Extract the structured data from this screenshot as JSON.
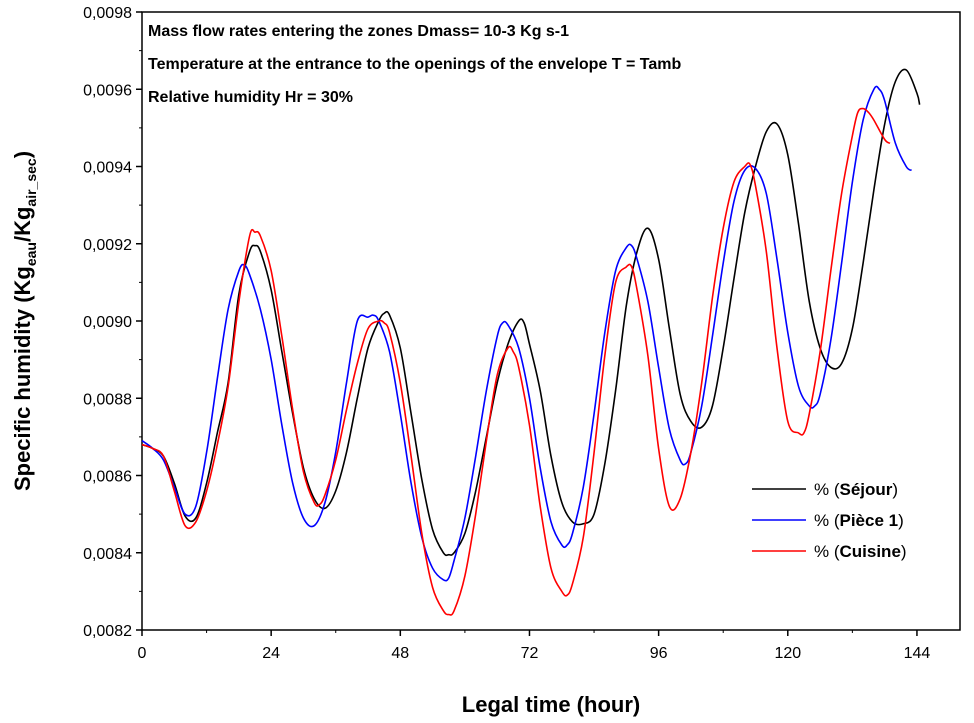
{
  "chart_data": {
    "type": "line",
    "xlabel": "Legal time (hour)",
    "ylabel_parts": [
      "Specific humidity (Kg",
      "eau",
      "/Kg",
      "air_sec",
      ")"
    ],
    "xlim": [
      0,
      152
    ],
    "ylim": [
      0.0082,
      0.0098
    ],
    "xticks": [
      0,
      24,
      48,
      72,
      96,
      120,
      144
    ],
    "xtick_labels": [
      "0",
      "24",
      "48",
      "72",
      "96",
      "120",
      "144"
    ],
    "yticks": [
      0.0082,
      0.0084,
      0.0086,
      0.0088,
      0.009,
      0.0092,
      0.0094,
      0.0096,
      0.0098
    ],
    "ytick_labels": [
      "0,0082",
      "0,0084",
      "0,0086",
      "0,0088",
      "0,0090",
      "0,0092",
      "0,0094",
      "0,0096",
      "0,0098"
    ],
    "annotations": [
      "Mass flow rates entering the zones Dmass= 10-3 Kg s-1",
      "Temperature at the entrance to the openings of the envelope T = Tamb",
      "Relative humidity Hr = 30%"
    ],
    "legend_position": "bottom-right",
    "series": [
      {
        "name": "Séjour",
        "legend_prefix": "% (",
        "legend_name": "Séjour",
        "legend_suffix": ")",
        "color": "#000000",
        "points": [
          [
            0,
            0.00868
          ],
          [
            2,
            0.00867
          ],
          [
            4,
            0.00865
          ],
          [
            6,
            0.00858
          ],
          [
            8,
            0.008495
          ],
          [
            10,
            0.00849
          ],
          [
            12,
            0.00858
          ],
          [
            14,
            0.00871
          ],
          [
            16,
            0.00884
          ],
          [
            18,
            0.00907
          ],
          [
            20,
            0.00918
          ],
          [
            21,
            0.009195
          ],
          [
            22,
            0.00918
          ],
          [
            24,
            0.00908
          ],
          [
            26,
            0.00892
          ],
          [
            28,
            0.00876
          ],
          [
            30,
            0.00862
          ],
          [
            32,
            0.00854
          ],
          [
            34,
            0.008515
          ],
          [
            36,
            0.00856
          ],
          [
            38,
            0.00866
          ],
          [
            40,
            0.0088
          ],
          [
            42,
            0.00893
          ],
          [
            44,
            0.009
          ],
          [
            45,
            0.00902
          ],
          [
            46,
            0.009015
          ],
          [
            48,
            0.00893
          ],
          [
            50,
            0.00876
          ],
          [
            52,
            0.00859
          ],
          [
            54,
            0.00846
          ],
          [
            56,
            0.0084
          ],
          [
            57,
            0.008395
          ],
          [
            58,
            0.0084
          ],
          [
            60,
            0.00845
          ],
          [
            62,
            0.00856
          ],
          [
            64,
            0.0087
          ],
          [
            66,
            0.00884
          ],
          [
            68,
            0.00894
          ],
          [
            70,
            0.009
          ],
          [
            71,
            0.008995
          ],
          [
            72,
            0.00894
          ],
          [
            74,
            0.00882
          ],
          [
            76,
            0.00865
          ],
          [
            78,
            0.00853
          ],
          [
            80,
            0.00848
          ],
          [
            82,
            0.008475
          ],
          [
            84,
            0.0085
          ],
          [
            86,
            0.00863
          ],
          [
            88,
            0.00882
          ],
          [
            90,
            0.00904
          ],
          [
            92,
            0.00918
          ],
          [
            94,
            0.00924
          ],
          [
            96,
            0.00916
          ],
          [
            98,
            0.00898
          ],
          [
            100,
            0.00881
          ],
          [
            102,
            0.00874
          ],
          [
            104,
            0.008725
          ],
          [
            106,
            0.00878
          ],
          [
            108,
            0.00893
          ],
          [
            110,
            0.00911
          ],
          [
            112,
            0.00928
          ],
          [
            114,
            0.0094
          ],
          [
            116,
            0.00949
          ],
          [
            118,
            0.00951
          ],
          [
            120,
            0.00943
          ],
          [
            122,
            0.00925
          ],
          [
            124,
            0.00905
          ],
          [
            126,
            0.00893
          ],
          [
            128,
            0.00888
          ],
          [
            130,
            0.00889
          ],
          [
            132,
            0.00898
          ],
          [
            134,
            0.00915
          ],
          [
            136,
            0.00934
          ],
          [
            138,
            0.00951
          ],
          [
            140,
            0.00962
          ],
          [
            142,
            0.00965
          ],
          [
            144,
            0.00959
          ],
          [
            144.5,
            0.00956
          ]
        ]
      },
      {
        "name": "Pièce 1",
        "legend_prefix": "% (",
        "legend_name": "Pièce 1",
        "legend_suffix": ")",
        "color": "#0000ff",
        "points": [
          [
            0,
            0.00869
          ],
          [
            2,
            0.00867
          ],
          [
            4,
            0.00864
          ],
          [
            6,
            0.00857
          ],
          [
            8,
            0.0085
          ],
          [
            10,
            0.00852
          ],
          [
            12,
            0.00866
          ],
          [
            14,
            0.00885
          ],
          [
            16,
            0.00903
          ],
          [
            18,
            0.00913
          ],
          [
            19,
            0.009145
          ],
          [
            20,
            0.00912
          ],
          [
            22,
            0.00903
          ],
          [
            24,
            0.0089
          ],
          [
            26,
            0.00873
          ],
          [
            28,
            0.00858
          ],
          [
            30,
            0.00849
          ],
          [
            32,
            0.00847
          ],
          [
            34,
            0.00853
          ],
          [
            36,
            0.00866
          ],
          [
            38,
            0.00884
          ],
          [
            40,
            0.009
          ],
          [
            42,
            0.00901
          ],
          [
            43,
            0.009015
          ],
          [
            44,
            0.009
          ],
          [
            46,
            0.00892
          ],
          [
            48,
            0.00876
          ],
          [
            50,
            0.00858
          ],
          [
            52,
            0.00844
          ],
          [
            54,
            0.00836
          ],
          [
            56,
            0.00833
          ],
          [
            57,
            0.008335
          ],
          [
            58,
            0.00838
          ],
          [
            60,
            0.00849
          ],
          [
            62,
            0.00865
          ],
          [
            64,
            0.00882
          ],
          [
            66,
            0.00896
          ],
          [
            67,
            0.008995
          ],
          [
            68,
            0.00899
          ],
          [
            70,
            0.00893
          ],
          [
            72,
            0.0088
          ],
          [
            74,
            0.00862
          ],
          [
            76,
            0.00848
          ],
          [
            78,
            0.00842
          ],
          [
            79,
            0.00842
          ],
          [
            80,
            0.00845
          ],
          [
            82,
            0.00857
          ],
          [
            84,
            0.00876
          ],
          [
            86,
            0.00897
          ],
          [
            88,
            0.00913
          ],
          [
            90,
            0.00919
          ],
          [
            91,
            0.009195
          ],
          [
            92,
            0.00916
          ],
          [
            94,
            0.00905
          ],
          [
            96,
            0.00888
          ],
          [
            98,
            0.00872
          ],
          [
            100,
            0.00864
          ],
          [
            101,
            0.00863
          ],
          [
            102,
            0.00866
          ],
          [
            104,
            0.00878
          ],
          [
            106,
            0.00896
          ],
          [
            108,
            0.00915
          ],
          [
            110,
            0.00931
          ],
          [
            112,
            0.00939
          ],
          [
            114,
            0.009395
          ],
          [
            116,
            0.00933
          ],
          [
            118,
            0.00916
          ],
          [
            120,
            0.00897
          ],
          [
            122,
            0.00883
          ],
          [
            124,
            0.00878
          ],
          [
            125,
            0.00878
          ],
          [
            126,
            0.00881
          ],
          [
            128,
            0.00895
          ],
          [
            130,
            0.00915
          ],
          [
            132,
            0.00936
          ],
          [
            134,
            0.00952
          ],
          [
            136,
            0.0096
          ],
          [
            137,
            0.0096
          ],
          [
            138,
            0.00957
          ],
          [
            140,
            0.00946
          ],
          [
            142,
            0.0094
          ],
          [
            143,
            0.00939
          ]
        ]
      },
      {
        "name": "Cuisine",
        "legend_prefix": "% (",
        "legend_name": "Cuisine",
        "legend_suffix": ")",
        "color": "#ff0000",
        "points": [
          [
            0,
            0.00868
          ],
          [
            2,
            0.00867
          ],
          [
            4,
            0.00865
          ],
          [
            6,
            0.00856
          ],
          [
            8,
            0.00847
          ],
          [
            10,
            0.00848
          ],
          [
            12,
            0.00856
          ],
          [
            14,
            0.00868
          ],
          [
            16,
            0.00883
          ],
          [
            18,
            0.00905
          ],
          [
            20,
            0.00922
          ],
          [
            21,
            0.00923
          ],
          [
            22,
            0.00922
          ],
          [
            24,
            0.00913
          ],
          [
            26,
            0.00896
          ],
          [
            28,
            0.00877
          ],
          [
            30,
            0.00861
          ],
          [
            32,
            0.00853
          ],
          [
            33,
            0.008525
          ],
          [
            34,
            0.00855
          ],
          [
            36,
            0.00864
          ],
          [
            38,
            0.00877
          ],
          [
            40,
            0.00889
          ],
          [
            42,
            0.00898
          ],
          [
            44,
            0.009
          ],
          [
            45,
            0.008995
          ],
          [
            46,
            0.00897
          ],
          [
            48,
            0.00884
          ],
          [
            50,
            0.00865
          ],
          [
            52,
            0.00845
          ],
          [
            54,
            0.00831
          ],
          [
            56,
            0.00825
          ],
          [
            57,
            0.00824
          ],
          [
            58,
            0.00825
          ],
          [
            60,
            0.00834
          ],
          [
            62,
            0.0085
          ],
          [
            64,
            0.00869
          ],
          [
            66,
            0.00886
          ],
          [
            68,
            0.00893
          ],
          [
            69,
            0.00892
          ],
          [
            70,
            0.00888
          ],
          [
            72,
            0.00873
          ],
          [
            74,
            0.00852
          ],
          [
            76,
            0.00836
          ],
          [
            78,
            0.0083
          ],
          [
            79,
            0.00829
          ],
          [
            80,
            0.00832
          ],
          [
            82,
            0.00844
          ],
          [
            84,
            0.00866
          ],
          [
            86,
            0.00891
          ],
          [
            88,
            0.0091
          ],
          [
            90,
            0.00914
          ],
          [
            91,
            0.00914
          ],
          [
            92,
            0.00908
          ],
          [
            94,
            0.00891
          ],
          [
            96,
            0.00867
          ],
          [
            98,
            0.00852
          ],
          [
            100,
            0.00854
          ],
          [
            102,
            0.00866
          ],
          [
            104,
            0.00884
          ],
          [
            106,
            0.00906
          ],
          [
            108,
            0.00924
          ],
          [
            110,
            0.00936
          ],
          [
            112,
            0.0094
          ],
          [
            113,
            0.009405
          ],
          [
            114,
            0.00935
          ],
          [
            116,
            0.00918
          ],
          [
            118,
            0.00893
          ],
          [
            120,
            0.00874
          ],
          [
            122,
            0.00871
          ],
          [
            123,
            0.00871
          ],
          [
            124,
            0.00876
          ],
          [
            126,
            0.00892
          ],
          [
            128,
            0.00913
          ],
          [
            130,
            0.00933
          ],
          [
            132,
            0.00948
          ],
          [
            133,
            0.00954
          ],
          [
            134,
            0.00955
          ],
          [
            135,
            0.00954
          ],
          [
            136,
            0.00952
          ],
          [
            138,
            0.00947
          ],
          [
            139,
            0.00946
          ]
        ]
      }
    ]
  }
}
